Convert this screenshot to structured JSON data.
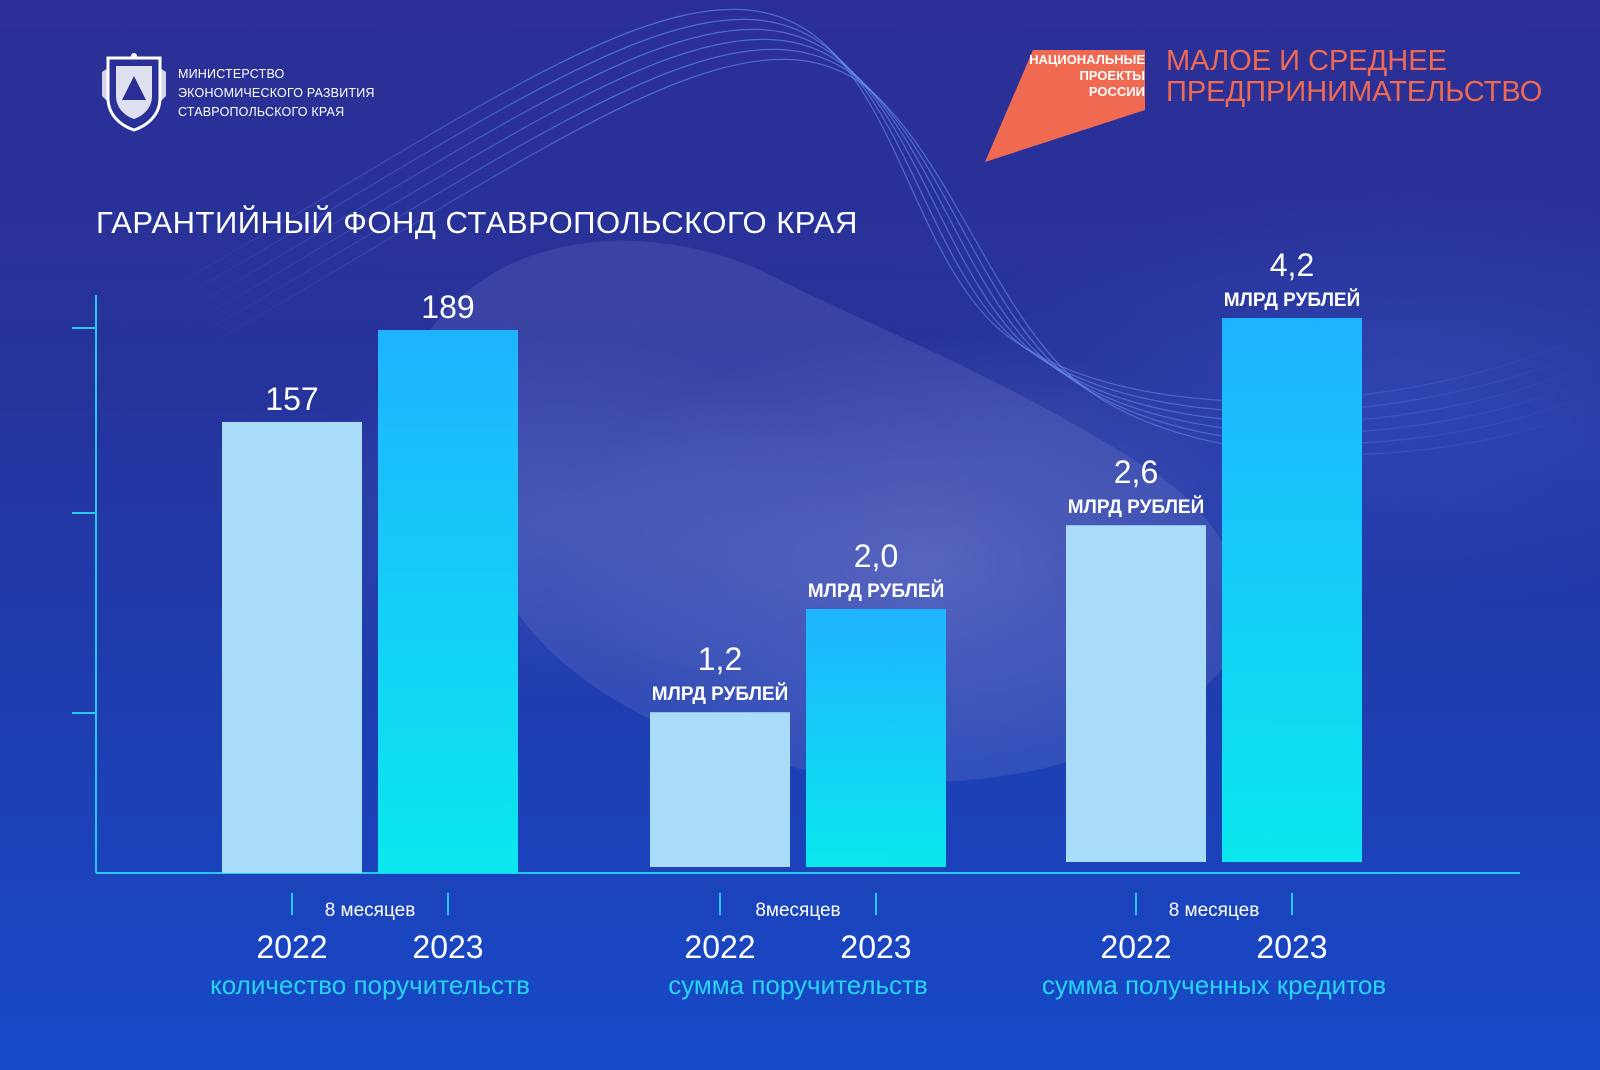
{
  "ministry": {
    "lines": [
      "МИНИСТЕРСТВО",
      "ЭКОНОМИЧЕСКОГО РАЗВИТИЯ",
      "СТАВРОПОЛЬСКОГО КРАЯ"
    ],
    "emblem_icon": "coat-of-arms-icon"
  },
  "national_projects": {
    "lines": [
      "НАЦИОНАЛЬНЫЕ",
      "ПРОЕКТЫ",
      "РОССИИ"
    ],
    "logo_color": "#f06a52"
  },
  "program": {
    "lines": [
      "МАЛОЕ И СРЕДНЕЕ",
      "ПРЕДПРИНИМАТЕЛЬСТВО"
    ],
    "color": "#f06a52"
  },
  "colors": {
    "bar_2022": "#a8dcf8",
    "bar_2023_top": "#1fb3ff",
    "bar_2023_bottom": "#0ae8ee",
    "axis": "#29c8ee",
    "category_label": "#27d4f2"
  },
  "chart_data": {
    "type": "bar",
    "title": "ГАРАНТИЙНЫЙ ФОНД СТАВРОПОЛЬСКОГО КРАЯ",
    "grid": false,
    "legend": "none",
    "groups": [
      {
        "category": "количество поручительств",
        "period": "8 месяцев",
        "unit": "",
        "x": [
          "2022",
          "2023"
        ],
        "values": [
          157,
          189
        ],
        "labels": [
          "157",
          "189"
        ]
      },
      {
        "category": "сумма поручительств",
        "period": "8месяцев",
        "unit": "МЛРД РУБЛЕЙ",
        "x": [
          "2022",
          "2023"
        ],
        "values": [
          1.2,
          2.0
        ],
        "labels": [
          "1,2",
          "2,0"
        ]
      },
      {
        "category": "сумма полученных кредитов",
        "period": "8 месяцев",
        "unit": "МЛРД РУБЛЕЙ",
        "x": [
          "2022",
          "2023"
        ],
        "values": [
          2.6,
          4.2
        ],
        "labels": [
          "2,6",
          "4,2"
        ]
      }
    ]
  }
}
